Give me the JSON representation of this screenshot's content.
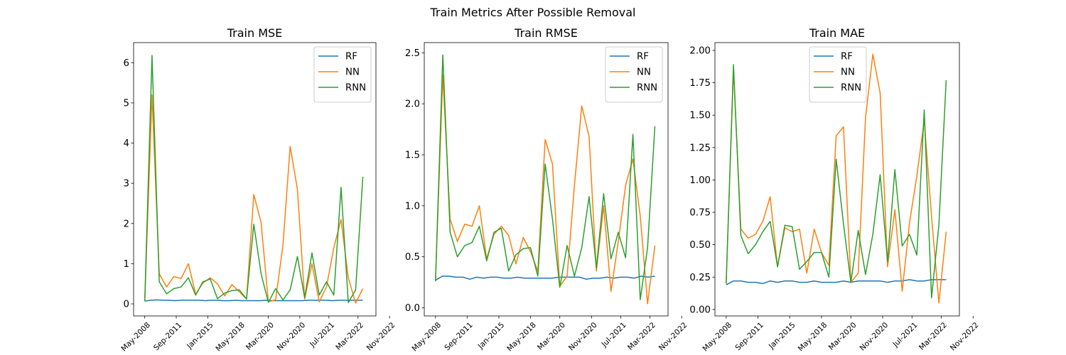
{
  "figure": {
    "title": "Train Metrics After Possible Removal"
  },
  "chart_data": [
    {
      "type": "line",
      "title": "Train MSE",
      "xlabel": "",
      "ylabel": "",
      "ylim": [
        -0.3,
        6.5
      ],
      "yticks": [
        0,
        1,
        2,
        3,
        4,
        5,
        6
      ],
      "ytick_labels": [
        "0",
        "1",
        "2",
        "3",
        "4",
        "5",
        "6"
      ],
      "xticks": [
        "May-2008",
        "Sep-2011",
        "Jan-2015",
        "May-2018",
        "Mar-2020",
        "Nov-2020",
        "Jul-2021",
        "Mar-2022",
        "Nov-2022"
      ],
      "legend": "top-right",
      "series": [
        {
          "name": "RF",
          "color": "#1f77b4",
          "values": [
            0.07,
            0.09,
            0.1,
            0.09,
            0.09,
            0.08,
            0.09,
            0.09,
            0.09,
            0.09,
            0.08,
            0.09,
            0.09,
            0.08,
            0.08,
            0.09,
            0.08,
            0.08,
            0.08,
            0.08,
            0.09,
            0.08,
            0.08,
            0.08,
            0.08,
            0.08,
            0.08,
            0.09,
            0.09,
            0.09,
            0.09,
            0.08,
            0.09,
            0.09,
            0.09,
            0.09,
            0.09
          ]
        },
        {
          "name": "NN",
          "color": "#ff7f0e",
          "values": [
            0.07,
            5.2,
            0.75,
            0.42,
            0.68,
            0.63,
            1.0,
            0.24,
            0.52,
            0.65,
            0.5,
            0.2,
            0.48,
            0.3,
            0.12,
            2.72,
            2.02,
            0.05,
            0.1,
            1.45,
            3.92,
            2.85,
            0.12,
            1.0,
            0.05,
            0.42,
            1.4,
            2.1,
            0.65,
            0.02,
            0.38
          ]
        },
        {
          "name": "RNN",
          "color": "#2ca02c",
          "values": [
            0.07,
            6.18,
            0.55,
            0.25,
            0.38,
            0.42,
            0.65,
            0.22,
            0.55,
            0.62,
            0.13,
            0.27,
            0.33,
            0.35,
            0.12,
            1.98,
            0.75,
            0.04,
            0.38,
            0.1,
            0.35,
            1.18,
            0.15,
            1.27,
            0.22,
            0.55,
            0.22,
            2.9,
            0.03,
            0.35,
            3.16
          ]
        }
      ]
    },
    {
      "type": "line",
      "title": "Train RMSE",
      "xlabel": "",
      "ylabel": "",
      "ylim": [
        -0.08,
        2.6
      ],
      "yticks": [
        0.0,
        0.5,
        1.0,
        1.5,
        2.0,
        2.5
      ],
      "ytick_labels": [
        "0.0",
        "0.5",
        "1.0",
        "1.5",
        "2.0",
        "2.5"
      ],
      "xticks": [
        "May-2008",
        "Sep-2011",
        "Jan-2015",
        "May-2018",
        "Mar-2020",
        "Nov-2020",
        "Jul-2021",
        "Mar-2022",
        "Nov-2022"
      ],
      "legend": "top-right",
      "series": [
        {
          "name": "RF",
          "color": "#1f77b4",
          "values": [
            0.27,
            0.31,
            0.31,
            0.3,
            0.3,
            0.28,
            0.3,
            0.29,
            0.3,
            0.3,
            0.29,
            0.29,
            0.3,
            0.29,
            0.29,
            0.29,
            0.29,
            0.29,
            0.3,
            0.3,
            0.3,
            0.3,
            0.28,
            0.29,
            0.29,
            0.3,
            0.29,
            0.3,
            0.3,
            0.29,
            0.31,
            0.3,
            0.31
          ]
        },
        {
          "name": "NN",
          "color": "#ff7f0e",
          "values": [
            0.27,
            2.28,
            0.87,
            0.65,
            0.82,
            0.8,
            1.0,
            0.48,
            0.72,
            0.8,
            0.71,
            0.43,
            0.69,
            0.55,
            0.36,
            1.65,
            1.41,
            0.21,
            0.31,
            1.2,
            1.98,
            1.68,
            0.36,
            1.0,
            0.16,
            0.65,
            1.2,
            1.46,
            0.9,
            0.04,
            0.61
          ]
        },
        {
          "name": "RNN",
          "color": "#2ca02c",
          "values": [
            0.26,
            2.48,
            0.74,
            0.5,
            0.61,
            0.64,
            0.8,
            0.46,
            0.74,
            0.78,
            0.36,
            0.52,
            0.58,
            0.59,
            0.31,
            1.41,
            0.87,
            0.2,
            0.61,
            0.31,
            0.59,
            1.09,
            0.39,
            1.12,
            0.48,
            0.74,
            0.49,
            1.7,
            0.08,
            0.59,
            1.78
          ]
        }
      ]
    },
    {
      "type": "line",
      "title": "Train MAE",
      "xlabel": "",
      "ylabel": "",
      "ylim": [
        -0.05,
        2.06
      ],
      "yticks": [
        0.0,
        0.25,
        0.5,
        0.75,
        1.0,
        1.25,
        1.5,
        1.75,
        2.0
      ],
      "ytick_labels": [
        "0.00",
        "0.25",
        "0.50",
        "0.75",
        "1.00",
        "1.25",
        "1.50",
        "1.75",
        "2.00"
      ],
      "xticks": [
        "May-2008",
        "Sep-2011",
        "Jan-2015",
        "May-2018",
        "Mar-2020",
        "Nov-2020",
        "Jul-2021",
        "Mar-2022",
        "Nov-2022"
      ],
      "legend": "top-center",
      "series": [
        {
          "name": "RF",
          "color": "#1f77b4",
          "values": [
            0.19,
            0.22,
            0.22,
            0.21,
            0.21,
            0.2,
            0.22,
            0.21,
            0.22,
            0.22,
            0.21,
            0.21,
            0.22,
            0.21,
            0.21,
            0.21,
            0.22,
            0.21,
            0.22,
            0.22,
            0.22,
            0.22,
            0.21,
            0.22,
            0.22,
            0.23,
            0.22,
            0.22,
            0.23,
            0.23,
            0.23
          ]
        },
        {
          "name": "NN",
          "color": "#ff7f0e",
          "values": [
            0.2,
            1.85,
            0.62,
            0.55,
            0.58,
            0.68,
            0.87,
            0.33,
            0.63,
            0.6,
            0.62,
            0.28,
            0.62,
            0.44,
            0.34,
            1.34,
            1.41,
            0.21,
            0.28,
            1.48,
            1.97,
            1.67,
            0.33,
            0.77,
            0.14,
            0.67,
            1.03,
            1.46,
            0.72,
            0.05,
            0.6
          ]
        },
        {
          "name": "RNN",
          "color": "#2ca02c",
          "values": [
            0.2,
            1.89,
            0.57,
            0.43,
            0.5,
            0.6,
            0.68,
            0.33,
            0.65,
            0.64,
            0.31,
            0.37,
            0.44,
            0.44,
            0.25,
            1.16,
            0.66,
            0.21,
            0.61,
            0.27,
            0.58,
            1.04,
            0.37,
            1.08,
            0.49,
            0.58,
            0.42,
            1.54,
            0.09,
            0.65,
            1.77
          ]
        }
      ]
    }
  ]
}
